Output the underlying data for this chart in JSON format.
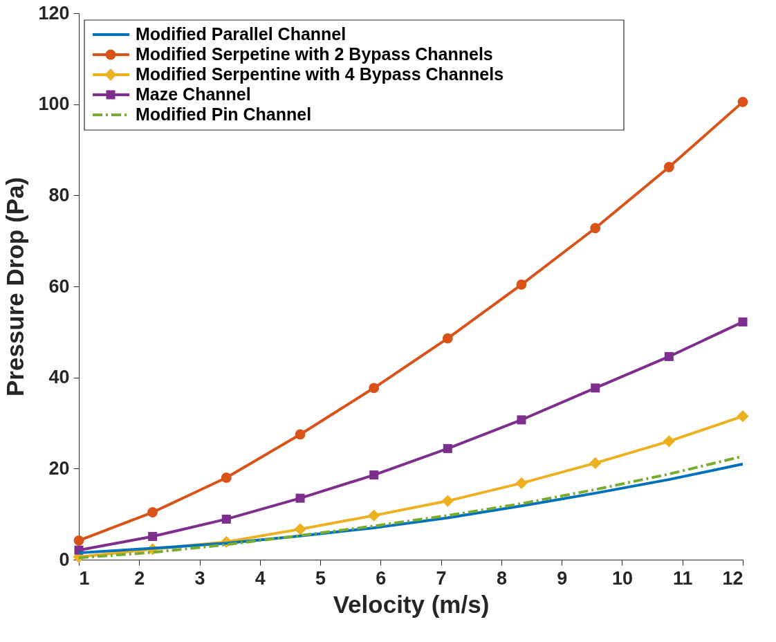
{
  "chart_data": {
    "type": "line",
    "xlabel": "Velocity (m/s)",
    "ylabel": "Pressure Drop (Pa)",
    "x": [
      1,
      2.222,
      3.444,
      4.667,
      5.889,
      7.111,
      8.333,
      9.556,
      10.778,
      12
    ],
    "xlim": [
      1,
      12
    ],
    "xticks": [
      1,
      2,
      3,
      4,
      5,
      6,
      7,
      8,
      9,
      10,
      11,
      12
    ],
    "ylim": [
      0,
      120
    ],
    "yticks": [
      0,
      20,
      40,
      60,
      80,
      100,
      120
    ],
    "grid": false,
    "legend": "top left",
    "series": [
      {
        "name": "Modified Parallel Channel",
        "color": "#0072bd",
        "marker": "none",
        "line_style": "solid",
        "values": [
          1.5,
          2.5,
          3.6,
          5.2,
          7.0,
          9.2,
          11.8,
          14.6,
          17.6,
          21.0
        ]
      },
      {
        "name": "Modified Serpetine with 2 Bypass Channels",
        "color": "#d95319",
        "marker": "circle",
        "line_style": "solid",
        "values": [
          4.2,
          10.4,
          18.0,
          27.5,
          37.7,
          48.6,
          60.4,
          72.8,
          86.2,
          100.5
        ]
      },
      {
        "name": "Modified Serpentine with 4 Bypass Channels",
        "color": "#edb120",
        "marker": "diamond",
        "line_style": "solid",
        "values": [
          0.6,
          2.3,
          3.9,
          6.7,
          9.7,
          12.9,
          16.8,
          21.2,
          26.0,
          31.5
        ]
      },
      {
        "name": "Maze Channel",
        "color": "#7e2f8e",
        "marker": "square",
        "line_style": "solid",
        "values": [
          2.1,
          5.1,
          8.9,
          13.5,
          18.6,
          24.4,
          30.7,
          37.7,
          44.6,
          52.2
        ]
      },
      {
        "name": "Modified Pin Channel",
        "color": "#77ac30",
        "marker": "none",
        "line_style": "dashed",
        "values": [
          0.4,
          1.6,
          3.3,
          5.3,
          7.4,
          9.7,
          12.3,
          15.4,
          18.8,
          22.7
        ]
      }
    ]
  }
}
